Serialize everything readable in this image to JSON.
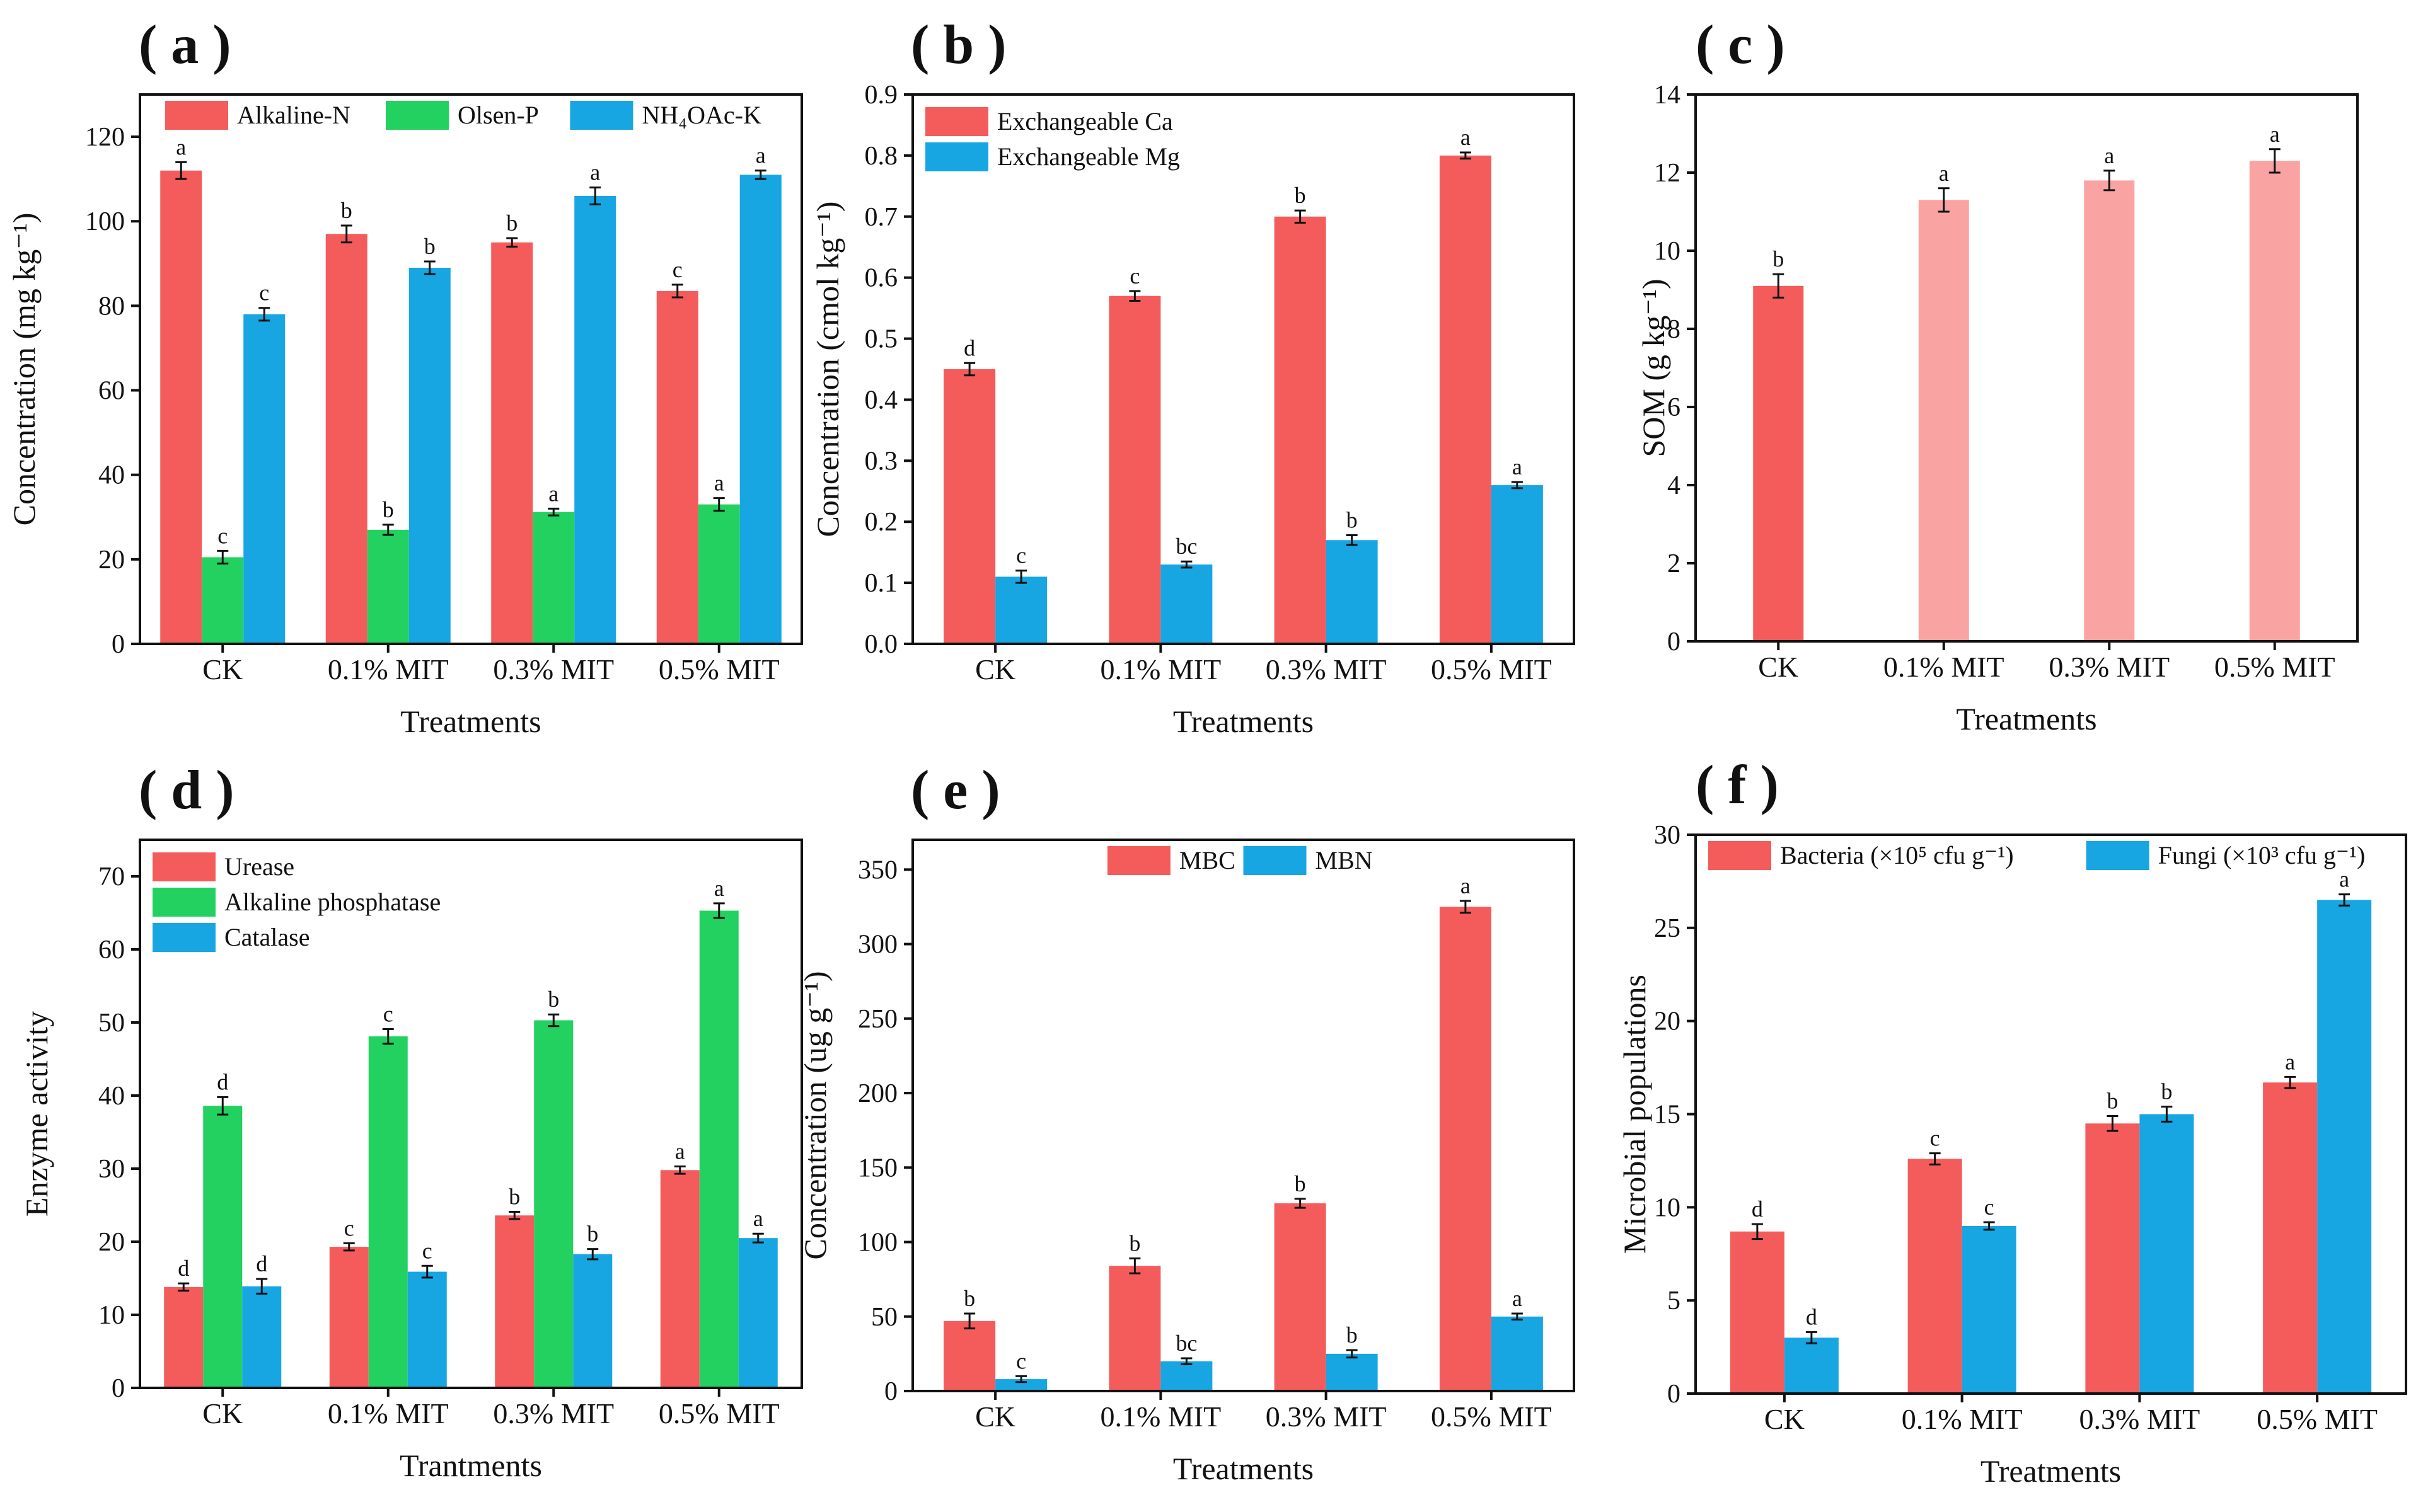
{
  "figure": {
    "colors": {
      "red": "#f45c5c",
      "green": "#22d160",
      "blue": "#17a6e2",
      "pink": "#f9a3a3",
      "axis": "#111111"
    }
  },
  "chart_data": [
    {
      "panel": "( a )",
      "type": "bar",
      "categories": [
        "CK",
        "0.1% MIT",
        "0.3% MIT",
        "0.5% MIT"
      ],
      "xlabel": "Treatments",
      "ylabel": "Concentration (mg kg⁻¹)",
      "ylim": [
        0,
        130
      ],
      "yticks": [
        0,
        20,
        40,
        60,
        80,
        100,
        120
      ],
      "legend_position": "top",
      "legend_layout": "row",
      "series": [
        {
          "name": "Alkaline-N",
          "color": "#f45c5c",
          "values": [
            112,
            97,
            95,
            83.5
          ],
          "errors": [
            2,
            2,
            1,
            1.5
          ],
          "labels": [
            "a",
            "b",
            "b",
            "c"
          ]
        },
        {
          "name": "Olsen-P",
          "color": "#22d160",
          "values": [
            20.5,
            27,
            31.2,
            33
          ],
          "errors": [
            1.5,
            1.2,
            0.8,
            1.5
          ],
          "labels": [
            "c",
            "b",
            "a",
            "a"
          ]
        },
        {
          "name": "NH₄OAc-K",
          "color": "#17a6e2",
          "values": [
            78,
            89,
            106,
            111
          ],
          "errors": [
            1.5,
            1.5,
            2,
            1
          ],
          "labels": [
            "c",
            "b",
            "a",
            "a"
          ]
        }
      ]
    },
    {
      "panel": "( b )",
      "type": "bar",
      "categories": [
        "CK",
        "0.1% MIT",
        "0.3% MIT",
        "0.5% MIT"
      ],
      "xlabel": "Treatments",
      "ylabel": "Concentration (cmol kg⁻¹)",
      "ylim": [
        0,
        0.9
      ],
      "yticks": [
        0,
        0.1,
        0.2,
        0.3,
        0.4,
        0.5,
        0.6,
        0.7,
        0.8,
        0.9
      ],
      "decimals": 1,
      "legend_position": "top-left",
      "legend_layout": "column",
      "series": [
        {
          "name": "Exchangeable Ca",
          "color": "#f45c5c",
          "values": [
            0.45,
            0.57,
            0.7,
            0.8
          ],
          "errors": [
            0.01,
            0.008,
            0.01,
            0.005
          ],
          "labels": [
            "d",
            "c",
            "b",
            "a"
          ]
        },
        {
          "name": "Exchangeable Mg",
          "color": "#17a6e2",
          "values": [
            0.11,
            0.13,
            0.17,
            0.26
          ],
          "errors": [
            0.01,
            0.005,
            0.008,
            0.005
          ],
          "labels": [
            "c",
            "bc",
            "b",
            "a"
          ]
        }
      ]
    },
    {
      "panel": "( c )",
      "type": "bar",
      "categories": [
        "CK",
        "0.1% MIT",
        "0.3% MIT",
        "0.5% MIT"
      ],
      "xlabel": "Treatments",
      "ylabel": "SOM (g kg⁻¹)",
      "ylim": [
        0,
        14
      ],
      "yticks": [
        0,
        2,
        4,
        6,
        8,
        10,
        12,
        14
      ],
      "series": [
        {
          "name": "SOM",
          "colors": [
            "#f45c5c",
            "#f9a3a3",
            "#f9a3a3",
            "#f9a3a3"
          ],
          "values": [
            9.1,
            11.3,
            11.8,
            12.3
          ],
          "errors": [
            0.3,
            0.3,
            0.25,
            0.3
          ],
          "labels": [
            "b",
            "a",
            "a",
            "a"
          ]
        }
      ]
    },
    {
      "panel": "( d )",
      "type": "bar",
      "categories": [
        "CK",
        "0.1% MIT",
        "0.3% MIT",
        "0.5% MIT"
      ],
      "xlabel": "Trantments",
      "ylabel": "Enzyme activity",
      "ylim": [
        0,
        75
      ],
      "yticks": [
        0,
        10,
        20,
        30,
        40,
        50,
        60,
        70
      ],
      "legend_position": "top-left",
      "legend_layout": "column",
      "series": [
        {
          "name": "Urease",
          "color": "#f45c5c",
          "values": [
            13.8,
            19.3,
            23.6,
            29.8
          ],
          "errors": [
            0.5,
            0.5,
            0.5,
            0.5
          ],
          "labels": [
            "d",
            "c",
            "b",
            "a"
          ]
        },
        {
          "name": "Alkaline phosphatase",
          "color": "#22d160",
          "values": [
            38.6,
            48.1,
            50.3,
            65.3
          ],
          "errors": [
            1.2,
            1,
            0.8,
            1
          ],
          "labels": [
            "d",
            "c",
            "b",
            "a"
          ]
        },
        {
          "name": "Catalase",
          "color": "#17a6e2",
          "values": [
            13.9,
            15.9,
            18.3,
            20.5
          ],
          "errors": [
            1,
            0.8,
            0.7,
            0.6
          ],
          "labels": [
            "d",
            "c",
            "b",
            "a"
          ]
        }
      ]
    },
    {
      "panel": "( e )",
      "type": "bar",
      "categories": [
        "CK",
        "0.1% MIT",
        "0.3% MIT",
        "0.5% MIT"
      ],
      "xlabel": "Treatments",
      "ylabel": "Concentration (ug g⁻¹)",
      "ylim": [
        0,
        370
      ],
      "yticks": [
        0,
        50,
        100,
        150,
        200,
        250,
        300,
        350
      ],
      "legend_position": "top",
      "legend_layout": "row",
      "series": [
        {
          "name": "MBC",
          "color": "#f45c5c",
          "values": [
            47,
            84,
            126,
            325
          ],
          "errors": [
            5,
            5,
            3,
            4
          ],
          "labels": [
            "b",
            "b",
            "b",
            "a"
          ]
        },
        {
          "name": "MBN",
          "color": "#17a6e2",
          "values": [
            8,
            20,
            25,
            50
          ],
          "errors": [
            2,
            2,
            2.5,
            2
          ],
          "labels": [
            "c",
            "bc",
            "b",
            "a"
          ]
        }
      ]
    },
    {
      "panel": "( f )",
      "type": "bar",
      "categories": [
        "CK",
        "0.1% MIT",
        "0.3% MIT",
        "0.5% MIT"
      ],
      "xlabel": "Treatments",
      "ylabel": "Microbial populations",
      "ylim": [
        0,
        30
      ],
      "yticks": [
        0,
        5,
        10,
        15,
        20,
        25,
        30
      ],
      "legend_position": "top",
      "legend_layout": "row",
      "series": [
        {
          "name": "Bacteria (×10⁵ cfu g⁻¹)",
          "color": "#f45c5c",
          "values": [
            8.7,
            12.6,
            14.5,
            16.7
          ],
          "errors": [
            0.4,
            0.3,
            0.4,
            0.3
          ],
          "labels": [
            "d",
            "c",
            "b",
            "a"
          ]
        },
        {
          "name": "Fungi (×10³ cfu g⁻¹)",
          "color": "#17a6e2",
          "values": [
            3.0,
            9.0,
            15.0,
            26.5
          ],
          "errors": [
            0.3,
            0.2,
            0.4,
            0.3
          ],
          "labels": [
            "d",
            "c",
            "b",
            "a"
          ]
        }
      ]
    }
  ]
}
